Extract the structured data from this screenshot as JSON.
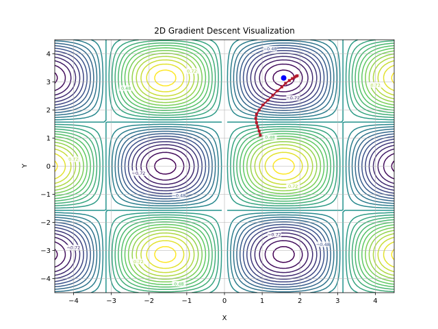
{
  "chart_data": {
    "type": "contour",
    "title": "2D Gradient Descent Visualization",
    "xlabel": "X",
    "ylabel": "Y",
    "xlim": [
      -4.5,
      4.5
    ],
    "ylim": [
      -4.5,
      4.5
    ],
    "xticks": [
      "−4",
      "−3",
      "−2",
      "−1",
      "0",
      "1",
      "2",
      "3",
      "4"
    ],
    "yticks": [
      "−4",
      "−3",
      "−2",
      "−1",
      "0",
      "1",
      "2",
      "3",
      "4"
    ],
    "grid": true,
    "surface": "sin(x)·cos(y)",
    "contour_levels": [
      -0.96,
      -0.88,
      -0.8,
      -0.72,
      -0.64,
      -0.56,
      -0.48,
      -0.4,
      -0.32,
      -0.24,
      -0.16,
      -0.08,
      0.0,
      0.08,
      0.16,
      0.24,
      0.32,
      0.4,
      0.48,
      0.56,
      0.64,
      0.72,
      0.8,
      0.88,
      0.96
    ],
    "colormap": [
      "#440154",
      "#3b528b",
      "#21918c",
      "#5ec962",
      "#fde725"
    ],
    "path": {
      "color": "#b2182b",
      "points": [
        [
          0.95,
          1.1
        ],
        [
          0.92,
          1.25
        ],
        [
          0.88,
          1.4
        ],
        [
          0.85,
          1.55
        ],
        [
          0.83,
          1.7
        ],
        [
          0.85,
          1.85
        ],
        [
          0.92,
          2.0
        ],
        [
          1.02,
          2.18
        ],
        [
          1.15,
          2.35
        ],
        [
          1.28,
          2.52
        ],
        [
          1.4,
          2.68
        ],
        [
          1.52,
          2.82
        ],
        [
          1.62,
          2.95
        ],
        [
          1.72,
          3.05
        ],
        [
          1.8,
          3.12
        ],
        [
          1.86,
          3.17
        ],
        [
          1.9,
          3.2
        ],
        [
          1.93,
          3.22
        ]
      ]
    },
    "final_point": {
      "color": "#0000ff",
      "x": 1.57,
      "y": 3.14
    }
  }
}
